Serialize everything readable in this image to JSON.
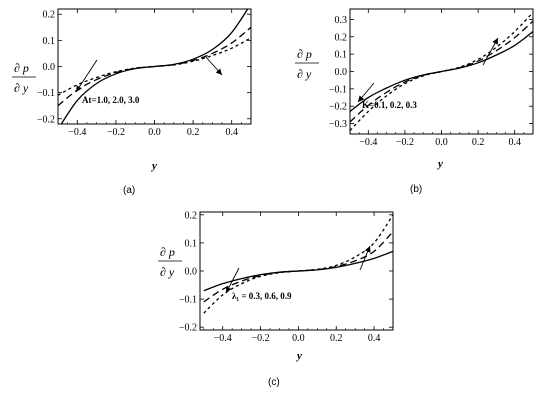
{
  "figure": {
    "ylabel_num": "∂ p",
    "ylabel_den": "∂ y",
    "xlabel": "y"
  },
  "chart_data": [
    {
      "type": "line",
      "panel_caption": "(a)",
      "annotation": "At=1.0, 2.0, 3.0",
      "xlim": [
        -0.5,
        0.5
      ],
      "ylim": [
        -0.22,
        0.22
      ],
      "x_ticks": [
        -0.4,
        -0.2,
        0.0,
        0.2,
        0.4
      ],
      "x_tick_labels": [
        "−0.4",
        "−0.2",
        "0.0",
        "0.2",
        "0.4"
      ],
      "y_ticks": [
        -0.2,
        -0.1,
        0.0,
        0.1,
        0.2
      ],
      "y_tick_labels": [
        "−0.2",
        "−0.1",
        "0.0",
        "0.1",
        "0.2"
      ],
      "x": [
        -0.5,
        -0.4,
        -0.3,
        -0.2,
        -0.1,
        0.0,
        0.1,
        0.2,
        0.3,
        0.4,
        0.5
      ],
      "series": [
        {
          "style": "solid",
          "values": [
            -0.24,
            -0.13,
            -0.065,
            -0.028,
            -0.008,
            0.0,
            0.008,
            0.028,
            0.065,
            0.13,
            0.24
          ]
        },
        {
          "style": "dashed",
          "values": [
            -0.15,
            -0.09,
            -0.05,
            -0.023,
            -0.007,
            0.0,
            0.007,
            0.023,
            0.05,
            0.09,
            0.15
          ]
        },
        {
          "style": "dotted",
          "values": [
            -0.11,
            -0.07,
            -0.042,
            -0.02,
            -0.006,
            0.0,
            0.006,
            0.02,
            0.042,
            0.07,
            0.11
          ]
        }
      ]
    },
    {
      "type": "line",
      "panel_caption": "(b)",
      "annotation": "K=0.1, 0.2, 0.3",
      "xlim": [
        -0.5,
        0.5
      ],
      "ylim": [
        -0.36,
        0.36
      ],
      "x_ticks": [
        -0.4,
        -0.2,
        0.0,
        0.2,
        0.4
      ],
      "x_tick_labels": [
        "−0.4",
        "−0.2",
        "0.0",
        "0.2",
        "0.4"
      ],
      "y_ticks": [
        -0.3,
        -0.2,
        -0.1,
        0.0,
        0.1,
        0.2,
        0.3
      ],
      "y_tick_labels": [
        "−0.3",
        "−0.2",
        "−0.1",
        "0.0",
        "0.1",
        "0.2",
        "0.3"
      ],
      "x": [
        -0.5,
        -0.4,
        -0.3,
        -0.2,
        -0.1,
        0.0,
        0.1,
        0.2,
        0.3,
        0.4,
        0.5
      ],
      "series": [
        {
          "style": "solid",
          "values": [
            -0.23,
            -0.15,
            -0.095,
            -0.05,
            -0.02,
            0.0,
            0.02,
            0.05,
            0.095,
            0.15,
            0.23
          ]
        },
        {
          "style": "dashed",
          "values": [
            -0.29,
            -0.195,
            -0.12,
            -0.06,
            -0.022,
            0.0,
            0.022,
            0.06,
            0.12,
            0.195,
            0.29
          ]
        },
        {
          "style": "dotted",
          "values": [
            -0.34,
            -0.23,
            -0.14,
            -0.07,
            -0.025,
            0.0,
            0.025,
            0.07,
            0.14,
            0.23,
            0.34
          ]
        }
      ]
    },
    {
      "type": "line",
      "panel_caption": "(c)",
      "annotation": "λ₁ = 0.3,  0.6,  0.9",
      "xlim": [
        -0.52,
        0.5
      ],
      "ylim": [
        -0.21,
        0.21
      ],
      "x_ticks": [
        -0.4,
        -0.2,
        0.0,
        0.2,
        0.4
      ],
      "x_tick_labels": [
        "−0.4",
        "−0.2",
        "0.0",
        "0.2",
        "0.4"
      ],
      "y_ticks": [
        -0.2,
        -0.1,
        0.0,
        0.1,
        0.2
      ],
      "y_tick_labels": [
        "−0.2",
        "−0.1",
        "0.0",
        "0.1",
        "0.2"
      ],
      "x": [
        -0.5,
        -0.4,
        -0.3,
        -0.2,
        -0.1,
        0.0,
        0.1,
        0.2,
        0.3,
        0.4,
        0.5
      ],
      "series": [
        {
          "style": "solid",
          "values": [
            -0.07,
            -0.045,
            -0.027,
            -0.013,
            -0.004,
            0.0,
            0.004,
            0.013,
            0.027,
            0.045,
            0.07
          ]
        },
        {
          "style": "dashed",
          "values": [
            -0.11,
            -0.065,
            -0.036,
            -0.016,
            -0.005,
            0.0,
            0.005,
            0.016,
            0.036,
            0.07,
            0.14
          ]
        },
        {
          "style": "dotted",
          "values": [
            -0.15,
            -0.085,
            -0.045,
            -0.019,
            -0.006,
            0.0,
            0.006,
            0.02,
            0.05,
            0.1,
            0.2
          ]
        }
      ]
    }
  ]
}
